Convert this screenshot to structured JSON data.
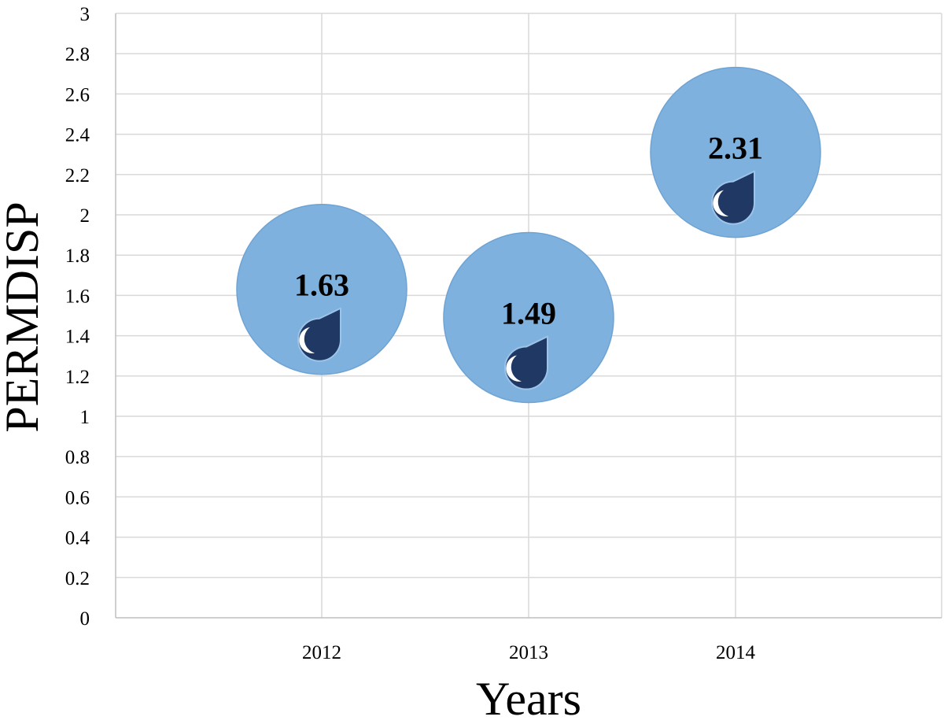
{
  "chart_data": {
    "type": "scatter",
    "title": "",
    "xlabel": "Years",
    "ylabel": "PERMDISP",
    "categories": [
      "2012",
      "2013",
      "2014"
    ],
    "values": [
      1.63,
      1.49,
      2.31
    ],
    "data_labels": [
      "1.63",
      "1.49",
      "2.31"
    ],
    "ylim": [
      0,
      3
    ],
    "y_ticks": [
      "0",
      "0.2",
      "0.4",
      "0.6",
      "0.8",
      "1",
      "1.2",
      "1.4",
      "1.6",
      "1.8",
      "2",
      "2.2",
      "2.4",
      "2.6",
      "2.8",
      "3"
    ],
    "grid": true,
    "legend": "none",
    "marker": "large-circle-with-water-drop-icon",
    "colors": {
      "bubble": "#7eb1de",
      "bubble_edge": "#6ea3d4",
      "drop": "#1f3864",
      "grid": "#d9d9d9"
    }
  }
}
